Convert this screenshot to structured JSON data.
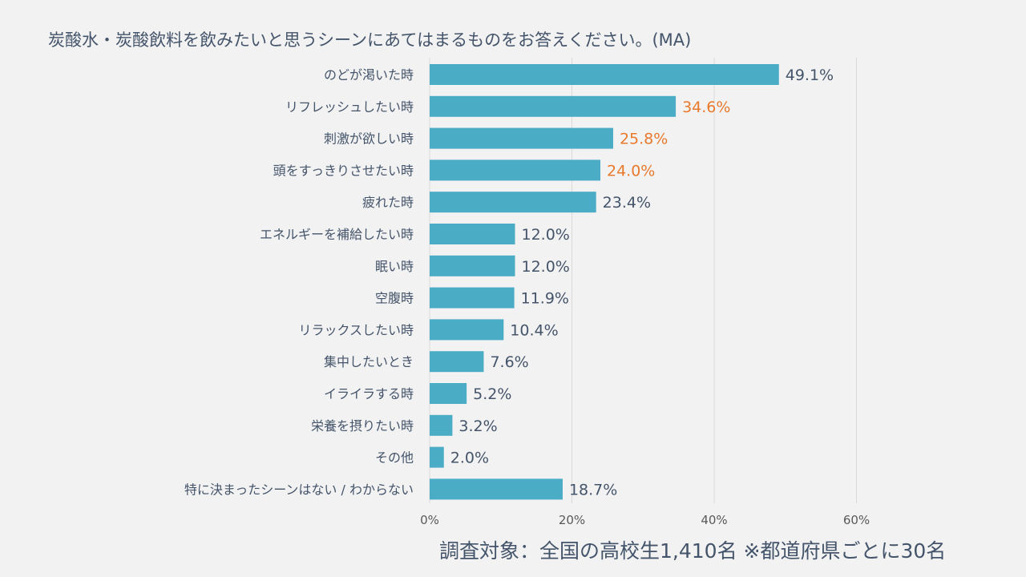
{
  "chart_data": {
    "type": "bar",
    "orientation": "horizontal",
    "title": "炭酸水・炭酸飲料を飲みたいと思うシーンにあてはまるものをお答えください。(MA)",
    "categories": [
      "のどが渇いた時",
      "リフレッシュしたい時",
      "刺激が欲しい時",
      "頭をすっきりさせたい時",
      "疲れた時",
      "エネルギーを補給したい時",
      "眠い時",
      "空腹時",
      "リラックスしたい時",
      "集中したいとき",
      "イライラする時",
      "栄養を摂りたい時",
      "その他",
      "特に決まったシーンはない / わからない"
    ],
    "values": [
      49.1,
      34.6,
      25.8,
      24.0,
      23.4,
      12.0,
      12.0,
      11.9,
      10.4,
      7.6,
      5.2,
      3.2,
      2.0,
      18.7
    ],
    "data_labels": [
      "49.1%",
      "34.6%",
      "25.8%",
      "24.0%",
      "23.4%",
      "12.0%",
      "12.0%",
      "11.9%",
      "10.4%",
      "7.6%",
      "5.2%",
      "3.2%",
      "2.0%",
      "18.7%"
    ],
    "highlighted": [
      false,
      true,
      true,
      true,
      false,
      false,
      false,
      false,
      false,
      false,
      false,
      false,
      false,
      false
    ],
    "xlim": [
      0,
      60
    ],
    "xticks": [
      "0%",
      "20%",
      "40%",
      "60%"
    ],
    "xtick_values": [
      0,
      20,
      40,
      60
    ],
    "grid": true,
    "xlabel": "",
    "ylabel": "",
    "colors": {
      "bar": "#4bacc6",
      "label": "#44546a",
      "highlight_label": "#e8792d",
      "grid": "#d9d9d9"
    }
  },
  "footnote": "調査対象：全国の高校生1,410名 ※都道府県ごとに30名"
}
